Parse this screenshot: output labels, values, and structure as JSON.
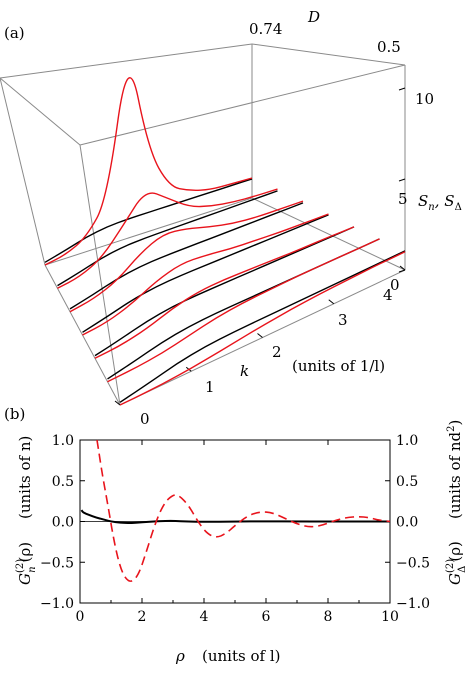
{
  "chart_data": [
    {
      "panel_label": "(a)",
      "type": "line",
      "kind": "3d-waterfall",
      "axes": {
        "D": {
          "label": "D",
          "ticks": [
            "0.74",
            "0.5"
          ]
        },
        "k": {
          "label": "k",
          "unit_label": "(units of 1/l)",
          "ticks": [
            "0",
            "1",
            "2",
            "3",
            "4"
          ],
          "range": [
            0,
            4
          ]
        },
        "S": {
          "label": "S_n, S_Δ",
          "label_main": "S",
          "sub_n": "n",
          "sub_delta": "Δ",
          "ticks": [
            "0",
            "5",
            "10"
          ],
          "range": [
            0,
            11
          ]
        }
      },
      "series": [
        {
          "D": 0.74,
          "Sn": [
            0.15,
            0.45,
            0.8,
            1.0,
            1.05,
            1.05,
            1.05,
            1.05,
            1.05,
            1.05,
            1.05
          ],
          "Sdel": [
            0.0,
            0.2,
            0.8,
            2.5,
            10.5,
            4.5,
            2.1,
            1.5,
            1.2,
            1.15,
            1.1
          ]
        },
        {
          "D": 0.7,
          "Sn": [
            0.15,
            0.45,
            0.8,
            1.0,
            1.05,
            1.05,
            1.05,
            1.05,
            1.05,
            1.05,
            1.05
          ],
          "Sdel": [
            0.0,
            0.2,
            0.8,
            2.2,
            3.7,
            2.8,
            1.9,
            1.5,
            1.3,
            1.2,
            1.15
          ]
        },
        {
          "D": 0.66,
          "Sn": [
            0.15,
            0.45,
            0.8,
            1.0,
            1.05,
            1.05,
            1.05,
            1.05,
            1.05,
            1.05,
            1.05
          ],
          "Sdel": [
            0.0,
            0.2,
            0.7,
            1.7,
            2.3,
            2.1,
            1.7,
            1.4,
            1.25,
            1.2,
            1.15
          ]
        },
        {
          "D": 0.62,
          "Sn": [
            0.15,
            0.45,
            0.8,
            1.0,
            1.05,
            1.05,
            1.05,
            1.05,
            1.05,
            1.05,
            1.05
          ],
          "Sdel": [
            0.0,
            0.15,
            0.6,
            1.3,
            1.7,
            1.6,
            1.4,
            1.3,
            1.2,
            1.15,
            1.1
          ]
        },
        {
          "D": 0.58,
          "Sn": [
            0.15,
            0.45,
            0.8,
            1.0,
            1.05,
            1.05,
            1.05,
            1.05,
            1.05,
            1.05,
            1.05
          ],
          "Sdel": [
            0.0,
            0.1,
            0.4,
            0.9,
            1.2,
            1.25,
            1.2,
            1.15,
            1.1,
            1.1,
            1.05
          ]
        },
        {
          "D": 0.54,
          "Sn": [
            0.15,
            0.45,
            0.8,
            1.0,
            1.05,
            1.05,
            1.05,
            1.05,
            1.05,
            1.05,
            1.05
          ],
          "Sdel": [
            0.0,
            0.05,
            0.2,
            0.5,
            0.8,
            0.95,
            1.0,
            1.05,
            1.05,
            1.05,
            1.05
          ]
        },
        {
          "D": 0.5,
          "Sn": [
            0.15,
            0.45,
            0.8,
            1.0,
            1.05,
            1.05,
            1.05,
            1.05,
            1.05,
            1.05,
            1.05
          ],
          "Sdel": [
            0.0,
            0.02,
            0.1,
            0.25,
            0.45,
            0.65,
            0.8,
            0.9,
            0.95,
            1.0,
            1.0
          ]
        }
      ],
      "k_samples": [
        0,
        0.4,
        0.8,
        1.2,
        1.6,
        2.0,
        2.4,
        2.8,
        3.2,
        3.6,
        4.0
      ],
      "colors": {
        "Sn": "#000000",
        "Sdel": "#e8141c",
        "box": "#8a8a8a"
      }
    },
    {
      "panel_label": "(b)",
      "type": "line",
      "x": {
        "label": "ρ",
        "unit_label": "(units of l)",
        "range": [
          0,
          10
        ],
        "ticks": [
          "0",
          "2",
          "4",
          "6",
          "8",
          "10"
        ]
      },
      "y_left": {
        "label_main": "G",
        "label_sup": "(2)",
        "label_sub": "n",
        "label_arg": "(ρ)",
        "unit_label": "(units of n)",
        "range": [
          -1.0,
          1.0
        ],
        "ticks": [
          "-1.0",
          "-0.5",
          "0.0",
          "0.5",
          "1.0"
        ]
      },
      "y_right": {
        "label_main": "G",
        "label_sup": "(2)",
        "label_sub": "Δ",
        "label_arg": "(ρ)",
        "unit_label": "(units of nd",
        "unit_sup": "2",
        "unit_close": ")",
        "range": [
          -1.0,
          1.0
        ],
        "ticks": [
          "-1.0",
          "-0.5",
          "0.0",
          "0.5",
          "1.0"
        ]
      },
      "series": [
        {
          "id": "Gn",
          "style": "solid",
          "color": "#000000",
          "x": [
            0.05,
            0.1,
            0.3,
            0.5,
            0.8,
            1.0,
            1.3,
            1.6,
            2.0,
            2.5,
            3.0,
            3.5,
            4.0,
            5,
            6,
            7,
            8,
            9,
            10
          ],
          "y": [
            0.14,
            0.11,
            0.08,
            0.05,
            0.02,
            0.0,
            -0.015,
            -0.02,
            -0.01,
            0.005,
            0.008,
            0.0,
            -0.004,
            0.0,
            0.002,
            0.0,
            -0.001,
            0.0,
            0.0
          ]
        },
        {
          "id": "Gdel",
          "style": "dashed",
          "color": "#e8141c",
          "x": [
            0.55,
            0.7,
            0.9,
            1.1,
            1.3,
            1.5,
            1.7,
            1.9,
            2.1,
            2.4,
            2.7,
            3.0,
            3.2,
            3.5,
            3.8,
            4.1,
            4.4,
            4.7,
            5.0,
            5.4,
            5.8,
            6.2,
            6.6,
            7.0,
            7.4,
            7.8,
            8.2,
            8.6,
            9.0,
            9.3,
            9.6,
            10.0
          ],
          "y": [
            1.0,
            0.62,
            0.2,
            -0.25,
            -0.57,
            -0.72,
            -0.74,
            -0.64,
            -0.42,
            -0.05,
            0.22,
            0.33,
            0.32,
            0.2,
            0.0,
            -0.15,
            -0.2,
            -0.15,
            -0.05,
            0.07,
            0.12,
            0.11,
            0.04,
            -0.03,
            -0.07,
            -0.05,
            0.01,
            0.05,
            0.06,
            0.05,
            0.02,
            0.0
          ]
        }
      ]
    }
  ]
}
